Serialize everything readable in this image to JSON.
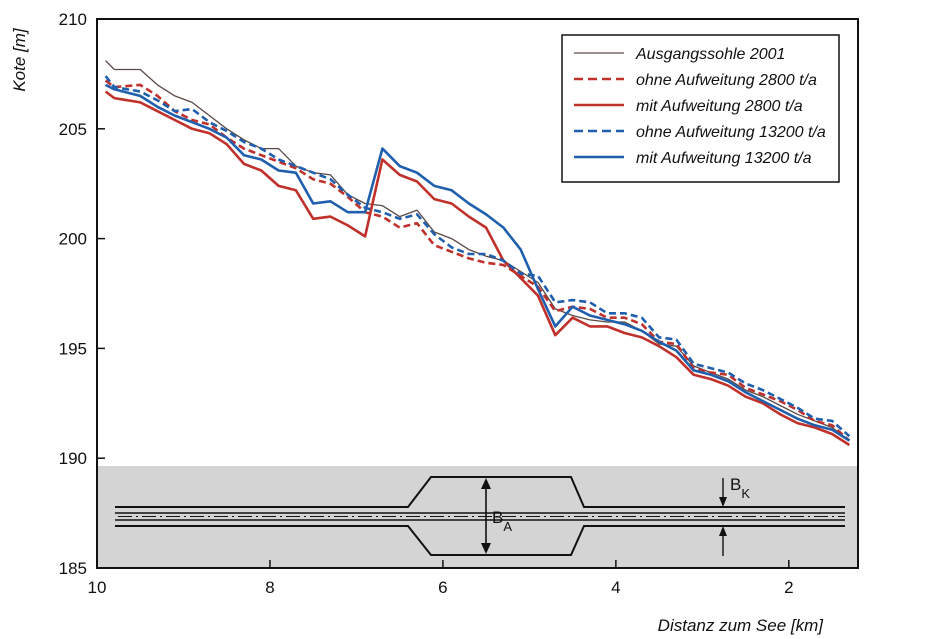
{
  "chart_data": {
    "type": "line",
    "title": "",
    "xlabel": "Distanz zum See [km]",
    "ylabel": "Kote [m]",
    "xlim": [
      10,
      1.2
    ],
    "ylim": [
      185,
      210
    ],
    "x_reversed": true,
    "xticks": [
      10,
      8,
      6,
      4,
      2
    ],
    "yticks": [
      185,
      190,
      195,
      200,
      205,
      210
    ],
    "grid": false,
    "legend_position": "top-right",
    "colors": {
      "red": "#c0312b",
      "blue": "#1f5fae",
      "gray": "#5a4a46",
      "band": "#d4d4d4"
    },
    "series": [
      {
        "name": "Ausgangssohle 2001",
        "color": "#5a4a46",
        "style": "solid-thin",
        "x": [
          9.9,
          9.8,
          9.5,
          9.3,
          9.1,
          8.9,
          8.7,
          8.5,
          8.3,
          8.1,
          7.9,
          7.7,
          7.5,
          7.3,
          7.1,
          6.9,
          6.7,
          6.5,
          6.3,
          6.1,
          5.9,
          5.7,
          5.5,
          5.3,
          5.1,
          4.9,
          4.7,
          4.5,
          4.3,
          4.1,
          3.9,
          3.7,
          3.5,
          3.3,
          3.1,
          2.9,
          2.7,
          2.5,
          2.3,
          2.1,
          1.9,
          1.7,
          1.5,
          1.3
        ],
        "y": [
          208.1,
          207.7,
          207.7,
          207.0,
          206.5,
          206.2,
          205.6,
          205.0,
          204.5,
          204.1,
          204.1,
          203.3,
          203.0,
          202.9,
          202.0,
          201.6,
          201.5,
          201.0,
          201.3,
          200.3,
          200.0,
          199.5,
          199.2,
          199.0,
          198.5,
          198.0,
          196.8,
          196.5,
          196.3,
          196.2,
          196.2,
          195.8,
          195.2,
          195.1,
          194.2,
          193.9,
          193.6,
          193.1,
          192.8,
          192.4,
          192.0,
          191.7,
          191.4,
          190.8
        ]
      },
      {
        "name": "ohne Aufweitung 2800 t/a",
        "color": "#c0312b",
        "style": "dashed",
        "x": [
          9.9,
          9.8,
          9.5,
          9.3,
          9.1,
          8.9,
          8.7,
          8.5,
          8.3,
          8.1,
          7.9,
          7.7,
          7.5,
          7.3,
          7.1,
          6.9,
          6.7,
          6.5,
          6.3,
          6.1,
          5.9,
          5.7,
          5.5,
          5.3,
          5.1,
          4.9,
          4.7,
          4.5,
          4.3,
          4.1,
          3.9,
          3.7,
          3.5,
          3.3,
          3.1,
          2.9,
          2.7,
          2.5,
          2.3,
          2.1,
          1.9,
          1.7,
          1.5,
          1.3
        ],
        "y": [
          207.2,
          206.9,
          207.0,
          206.5,
          205.8,
          205.4,
          205.2,
          204.6,
          204.1,
          203.8,
          203.5,
          203.2,
          202.7,
          202.5,
          201.9,
          201.2,
          201.0,
          200.5,
          200.7,
          199.7,
          199.4,
          199.1,
          198.9,
          198.8,
          198.3,
          197.8,
          196.7,
          196.9,
          196.8,
          196.4,
          196.4,
          196.1,
          195.3,
          195.2,
          194.1,
          193.9,
          193.8,
          193.2,
          192.9,
          192.6,
          192.2,
          191.7,
          191.5,
          190.8
        ]
      },
      {
        "name": "mit Aufweitung 2800 t/a",
        "color": "#c0312b",
        "style": "solid",
        "x": [
          9.9,
          9.8,
          9.5,
          9.3,
          9.1,
          8.9,
          8.7,
          8.5,
          8.3,
          8.1,
          7.9,
          7.7,
          7.5,
          7.3,
          7.1,
          6.9,
          6.7,
          6.5,
          6.3,
          6.1,
          5.9,
          5.7,
          5.5,
          5.3,
          5.1,
          4.9,
          4.7,
          4.5,
          4.3,
          4.1,
          3.9,
          3.7,
          3.5,
          3.3,
          3.1,
          2.9,
          2.7,
          2.5,
          2.3,
          2.1,
          1.9,
          1.7,
          1.5,
          1.3
        ],
        "y": [
          206.7,
          206.4,
          206.2,
          205.8,
          205.4,
          205.0,
          204.8,
          204.3,
          203.4,
          203.1,
          202.4,
          202.2,
          200.9,
          201.0,
          200.6,
          200.1,
          203.6,
          202.9,
          202.6,
          201.8,
          201.6,
          201.0,
          200.5,
          199.0,
          198.2,
          197.4,
          195.6,
          196.4,
          196.0,
          196.0,
          195.7,
          195.5,
          195.1,
          194.6,
          193.8,
          193.6,
          193.3,
          192.8,
          192.5,
          192.0,
          191.6,
          191.4,
          191.1,
          190.6
        ]
      },
      {
        "name": "ohne Aufweitung 13200 t/a",
        "color": "#1f5fae",
        "style": "dashed",
        "x": [
          9.9,
          9.8,
          9.5,
          9.3,
          9.1,
          8.9,
          8.7,
          8.5,
          8.3,
          8.1,
          7.9,
          7.7,
          7.5,
          7.3,
          7.1,
          6.9,
          6.7,
          6.5,
          6.3,
          6.1,
          5.9,
          5.7,
          5.5,
          5.3,
          5.1,
          4.9,
          4.7,
          4.5,
          4.3,
          4.1,
          3.9,
          3.7,
          3.5,
          3.3,
          3.1,
          2.9,
          2.7,
          2.5,
          2.3,
          2.1,
          1.9,
          1.7,
          1.5,
          1.3
        ],
        "y": [
          207.4,
          206.9,
          206.7,
          206.3,
          205.8,
          205.9,
          205.3,
          204.9,
          204.4,
          204.1,
          203.6,
          203.3,
          203.0,
          202.7,
          202.0,
          201.4,
          201.2,
          200.9,
          201.1,
          200.2,
          199.6,
          199.3,
          199.3,
          199.0,
          198.4,
          198.3,
          197.1,
          197.2,
          197.1,
          196.6,
          196.6,
          196.4,
          195.5,
          195.4,
          194.3,
          194.1,
          193.9,
          193.4,
          193.1,
          192.7,
          192.3,
          191.8,
          191.7,
          191.0
        ]
      },
      {
        "name": "mit Aufweitung 13200 t/a",
        "color": "#1f5fae",
        "style": "solid",
        "x": [
          9.9,
          9.8,
          9.5,
          9.3,
          9.1,
          8.9,
          8.7,
          8.5,
          8.3,
          8.1,
          7.9,
          7.7,
          7.5,
          7.3,
          7.1,
          6.9,
          6.7,
          6.5,
          6.3,
          6.1,
          5.9,
          5.7,
          5.5,
          5.3,
          5.1,
          4.9,
          4.7,
          4.5,
          4.3,
          4.1,
          3.9,
          3.7,
          3.5,
          3.3,
          3.1,
          2.9,
          2.7,
          2.5,
          2.3,
          2.1,
          1.9,
          1.7,
          1.5,
          1.3
        ],
        "y": [
          207.0,
          206.8,
          206.5,
          206.0,
          205.6,
          205.3,
          205.0,
          204.6,
          203.8,
          203.6,
          203.1,
          203.0,
          201.6,
          201.7,
          201.2,
          201.2,
          204.1,
          203.3,
          203.0,
          202.4,
          202.2,
          201.6,
          201.1,
          200.5,
          199.5,
          197.7,
          196.0,
          196.9,
          196.5,
          196.3,
          196.1,
          195.8,
          195.3,
          194.9,
          194.0,
          193.8,
          193.5,
          193.0,
          192.6,
          192.2,
          191.8,
          191.5,
          191.3,
          190.8
        ]
      }
    ],
    "diagram": {
      "label_width_wide": "B",
      "label_width_wide_sub": "A",
      "label_width_channel": "B",
      "label_width_channel_sub": "K",
      "widening_x_range": [
        6.8,
        4.9
      ]
    }
  }
}
